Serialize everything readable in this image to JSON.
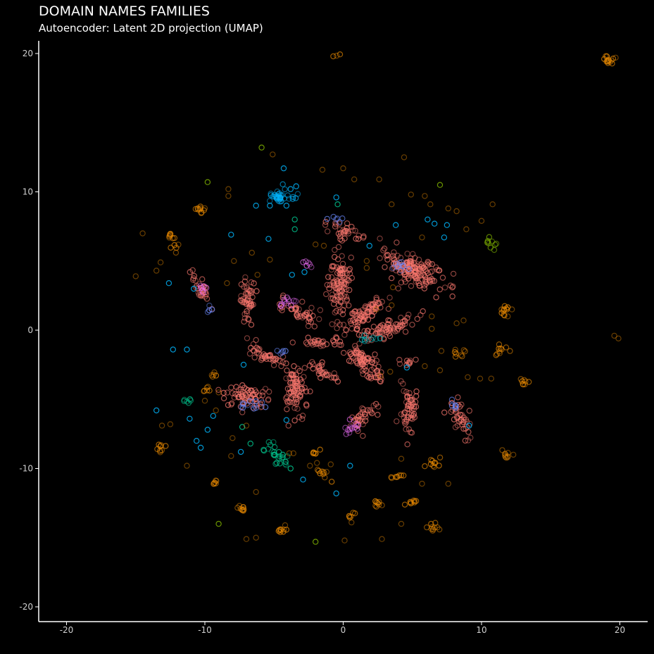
{
  "chart_data": {
    "type": "scatter",
    "title": "DOMAIN NAMES FAMILIES",
    "subtitle": "Autoencoder: Latent 2D projection (UMAP)",
    "xlabel": "",
    "ylabel": "",
    "xlim": [
      -22,
      22
    ],
    "ylim": [
      -22,
      22
    ],
    "xticks": [
      -20,
      -10,
      0,
      10,
      20
    ],
    "yticks": [
      20,
      10,
      0,
      -10,
      -20
    ],
    "grid": false,
    "legend": "none",
    "marker": "hollow-circle",
    "palette": {
      "salmon": "#f8766d",
      "orange": "#e58700",
      "cyan": "#00b0f6",
      "blue": "#6b8bff",
      "green": "#00c08b",
      "lime": "#7cae00",
      "pink": "#e76bf3",
      "teal": "#00bfc4"
    },
    "clusters": [
      {
        "cx": 5.0,
        "cy": 4.4,
        "sx": 1.2,
        "sy": 0.5,
        "angle": -25,
        "n": 160,
        "c": "salmon"
      },
      {
        "cx": -0.3,
        "cy": 3.3,
        "sx": 0.4,
        "sy": 1.2,
        "angle": 0,
        "n": 110,
        "c": "salmon"
      },
      {
        "cx": 1.4,
        "cy": 1.0,
        "sx": 1.0,
        "sy": 0.3,
        "angle": 40,
        "n": 80,
        "c": "salmon"
      },
      {
        "cx": 1.4,
        "cy": -2.2,
        "sx": 1.2,
        "sy": 0.3,
        "angle": -45,
        "n": 90,
        "c": "salmon"
      },
      {
        "cx": 3.0,
        "cy": 0.0,
        "sx": 1.2,
        "sy": 0.3,
        "angle": 20,
        "n": 70,
        "c": "salmon"
      },
      {
        "cx": -3.5,
        "cy": -4.2,
        "sx": 0.4,
        "sy": 0.8,
        "angle": 0,
        "n": 80,
        "c": "salmon"
      },
      {
        "cx": -7.0,
        "cy": -4.8,
        "sx": 0.9,
        "sy": 0.4,
        "angle": 0,
        "n": 70,
        "c": "salmon"
      },
      {
        "cx": -6.9,
        "cy": 2.0,
        "sx": 0.3,
        "sy": 0.8,
        "angle": 0,
        "n": 50,
        "c": "salmon"
      },
      {
        "cx": -5.2,
        "cy": -2.0,
        "sx": 1.0,
        "sy": 0.2,
        "angle": -25,
        "n": 45,
        "c": "salmon"
      },
      {
        "cx": -3.4,
        "cy": 1.4,
        "sx": 0.8,
        "sy": 0.3,
        "angle": -30,
        "n": 40,
        "c": "salmon"
      },
      {
        "cx": 4.8,
        "cy": -5.9,
        "sx": 0.3,
        "sy": 0.9,
        "angle": 0,
        "n": 55,
        "c": "salmon"
      },
      {
        "cx": 8.5,
        "cy": -6.3,
        "sx": 0.3,
        "sy": 0.8,
        "angle": 20,
        "n": 40,
        "c": "salmon"
      },
      {
        "cx": 1.4,
        "cy": -6.3,
        "sx": 0.8,
        "sy": 0.3,
        "angle": 50,
        "n": 35,
        "c": "salmon"
      },
      {
        "cx": -1.5,
        "cy": -3.0,
        "sx": 0.7,
        "sy": 0.2,
        "angle": -35,
        "n": 30,
        "c": "salmon"
      },
      {
        "cx": -10.2,
        "cy": 2.8,
        "sx": 0.7,
        "sy": 0.2,
        "angle": -60,
        "n": 30,
        "c": "salmon"
      },
      {
        "cx": -1.6,
        "cy": -0.9,
        "sx": 0.8,
        "sy": 0.15,
        "angle": 0,
        "n": 25,
        "c": "salmon"
      },
      {
        "cx": 0.2,
        "cy": 7.2,
        "sx": 0.6,
        "sy": 0.3,
        "angle": -30,
        "n": 30,
        "c": "salmon"
      },
      {
        "cx": 4.7,
        "cy": -2.3,
        "sx": 0.3,
        "sy": 0.1,
        "angle": 0,
        "n": 10,
        "c": "salmon"
      },
      {
        "cx": -4.7,
        "cy": 9.7,
        "sx": 0.25,
        "sy": 0.25,
        "angle": 0,
        "n": 30,
        "c": "cyan"
      },
      {
        "cx": -4.0,
        "cy": 9.6,
        "sx": 0.5,
        "sy": 0.2,
        "angle": 0,
        "n": 8,
        "c": "cyan"
      },
      {
        "cx": -4.6,
        "cy": -9.3,
        "sx": 0.3,
        "sy": 0.3,
        "angle": 0,
        "n": 20,
        "c": "green"
      },
      {
        "cx": -5.4,
        "cy": -8.4,
        "sx": 0.3,
        "sy": 0.2,
        "angle": 0,
        "n": 8,
        "c": "green"
      },
      {
        "cx": -11.3,
        "cy": -5.2,
        "sx": 0.2,
        "sy": 0.2,
        "angle": 0,
        "n": 6,
        "c": "green"
      },
      {
        "cx": 10.7,
        "cy": 6.2,
        "sx": 0.3,
        "sy": 0.2,
        "angle": -30,
        "n": 10,
        "c": "lime"
      },
      {
        "cx": -12.2,
        "cy": 6.4,
        "sx": 0.2,
        "sy": 0.3,
        "angle": 0,
        "n": 12,
        "c": "orange"
      },
      {
        "cx": -10.3,
        "cy": 8.7,
        "sx": 0.2,
        "sy": 0.15,
        "angle": 0,
        "n": 10,
        "c": "orange"
      },
      {
        "cx": 19.2,
        "cy": 19.6,
        "sx": 0.2,
        "sy": 0.2,
        "angle": 0,
        "n": 14,
        "c": "orange"
      },
      {
        "cx": 11.6,
        "cy": 1.4,
        "sx": 0.2,
        "sy": 0.2,
        "angle": 0,
        "n": 10,
        "c": "orange"
      },
      {
        "cx": 11.4,
        "cy": -1.5,
        "sx": 0.3,
        "sy": 0.2,
        "angle": 40,
        "n": 10,
        "c": "orange"
      },
      {
        "cx": 13.0,
        "cy": -3.9,
        "sx": 0.2,
        "sy": 0.15,
        "angle": 0,
        "n": 8,
        "c": "orange"
      },
      {
        "cx": 11.8,
        "cy": -9.1,
        "sx": 0.2,
        "sy": 0.15,
        "angle": 0,
        "n": 8,
        "c": "orange"
      },
      {
        "cx": 6.5,
        "cy": -9.6,
        "sx": 0.2,
        "sy": 0.2,
        "angle": 0,
        "n": 10,
        "c": "orange"
      },
      {
        "cx": 6.4,
        "cy": -14.2,
        "sx": 0.2,
        "sy": 0.2,
        "angle": 0,
        "n": 10,
        "c": "orange"
      },
      {
        "cx": 4.9,
        "cy": -12.4,
        "sx": 0.2,
        "sy": 0.15,
        "angle": 0,
        "n": 8,
        "c": "orange"
      },
      {
        "cx": 3.9,
        "cy": -10.6,
        "sx": 0.2,
        "sy": 0.1,
        "angle": 0,
        "n": 8,
        "c": "orange"
      },
      {
        "cx": 2.5,
        "cy": -12.6,
        "sx": 0.15,
        "sy": 0.2,
        "angle": 0,
        "n": 8,
        "c": "orange"
      },
      {
        "cx": 0.7,
        "cy": -13.5,
        "sx": 0.15,
        "sy": 0.15,
        "angle": 0,
        "n": 6,
        "c": "orange"
      },
      {
        "cx": -1.5,
        "cy": -10.3,
        "sx": 0.3,
        "sy": 0.15,
        "angle": -45,
        "n": 10,
        "c": "orange"
      },
      {
        "cx": -2.0,
        "cy": -8.9,
        "sx": 0.15,
        "sy": 0.15,
        "angle": 0,
        "n": 6,
        "c": "orange"
      },
      {
        "cx": -4.5,
        "cy": -14.5,
        "sx": 0.2,
        "sy": 0.15,
        "angle": 0,
        "n": 8,
        "c": "orange"
      },
      {
        "cx": -7.3,
        "cy": -12.9,
        "sx": 0.2,
        "sy": 0.15,
        "angle": 0,
        "n": 8,
        "c": "orange"
      },
      {
        "cx": -9.3,
        "cy": -11.0,
        "sx": 0.15,
        "sy": 0.15,
        "angle": 0,
        "n": 6,
        "c": "orange"
      },
      {
        "cx": -13.2,
        "cy": -8.5,
        "sx": 0.2,
        "sy": 0.2,
        "angle": 0,
        "n": 8,
        "c": "orange"
      },
      {
        "cx": -10.0,
        "cy": -4.3,
        "sx": 0.15,
        "sy": 0.15,
        "angle": 0,
        "n": 6,
        "c": "orange"
      },
      {
        "cx": -9.3,
        "cy": -3.2,
        "sx": 0.15,
        "sy": 0.15,
        "angle": 0,
        "n": 5,
        "c": "orange"
      },
      {
        "cx": 8.4,
        "cy": -1.7,
        "sx": 0.2,
        "sy": 0.15,
        "angle": 0,
        "n": 8,
        "c": "orange"
      },
      {
        "cx": -0.4,
        "cy": 19.9,
        "sx": 0.2,
        "sy": 0.1,
        "angle": 0,
        "n": 3,
        "c": "orange"
      },
      {
        "cx": 4.5,
        "cy": 4.6,
        "sx": 0.5,
        "sy": 0.2,
        "angle": -20,
        "n": 10,
        "c": "blue"
      },
      {
        "cx": -6.6,
        "cy": -5.5,
        "sx": 0.5,
        "sy": 0.2,
        "angle": 0,
        "n": 12,
        "c": "blue"
      },
      {
        "cx": -3.7,
        "cy": 2.1,
        "sx": 0.5,
        "sy": 0.2,
        "angle": 20,
        "n": 12,
        "c": "pink"
      },
      {
        "cx": 0.6,
        "cy": -7.2,
        "sx": 0.5,
        "sy": 0.2,
        "angle": 50,
        "n": 12,
        "c": "pink"
      },
      {
        "cx": -0.6,
        "cy": 8.1,
        "sx": 0.3,
        "sy": 0.15,
        "angle": 0,
        "n": 6,
        "c": "blue"
      },
      {
        "cx": 8.0,
        "cy": -5.4,
        "sx": 0.3,
        "sy": 0.15,
        "angle": 0,
        "n": 6,
        "c": "blue"
      },
      {
        "cx": -9.6,
        "cy": 1.6,
        "sx": 0.2,
        "sy": 0.15,
        "angle": 0,
        "n": 5,
        "c": "blue"
      },
      {
        "cx": -4.3,
        "cy": -1.6,
        "sx": 0.2,
        "sy": 0.15,
        "angle": 0,
        "n": 5,
        "c": "blue"
      },
      {
        "cx": 2.0,
        "cy": -0.6,
        "sx": 0.4,
        "sy": 0.15,
        "angle": 0,
        "n": 8,
        "c": "teal"
      },
      {
        "cx": -2.5,
        "cy": 4.6,
        "sx": 0.15,
        "sy": 0.3,
        "angle": 0,
        "n": 6,
        "c": "pink"
      },
      {
        "cx": -10.2,
        "cy": 3.1,
        "sx": 0.3,
        "sy": 0.15,
        "angle": -50,
        "n": 6,
        "c": "pink"
      }
    ],
    "points": [
      {
        "x": -4.3,
        "y": 11.7,
        "c": "cyan"
      },
      {
        "x": -3.8,
        "y": 10.2,
        "c": "cyan"
      },
      {
        "x": -3.4,
        "y": 10.4,
        "c": "cyan"
      },
      {
        "x": -6.3,
        "y": 9.0,
        "c": "cyan"
      },
      {
        "x": -5.3,
        "y": 9.0,
        "c": "cyan"
      },
      {
        "x": -4.1,
        "y": 9.0,
        "c": "cyan"
      },
      {
        "x": -8.1,
        "y": 6.9,
        "c": "cyan"
      },
      {
        "x": -5.4,
        "y": 6.6,
        "c": "cyan"
      },
      {
        "x": -12.6,
        "y": 3.4,
        "c": "cyan"
      },
      {
        "x": -12.3,
        "y": -1.4,
        "c": "cyan"
      },
      {
        "x": -11.3,
        "y": -1.4,
        "c": "cyan"
      },
      {
        "x": -10.8,
        "y": 3.0,
        "c": "cyan"
      },
      {
        "x": -13.5,
        "y": -5.8,
        "c": "cyan"
      },
      {
        "x": -9.4,
        "y": -6.2,
        "c": "cyan"
      },
      {
        "x": -11.1,
        "y": -6.4,
        "c": "cyan"
      },
      {
        "x": -9.8,
        "y": -7.2,
        "c": "cyan"
      },
      {
        "x": -10.6,
        "y": -8.0,
        "c": "cyan"
      },
      {
        "x": -10.3,
        "y": -8.5,
        "c": "cyan"
      },
      {
        "x": -7.4,
        "y": -8.8,
        "c": "cyan"
      },
      {
        "x": -4.1,
        "y": -6.5,
        "c": "cyan"
      },
      {
        "x": -2.9,
        "y": -10.8,
        "c": "cyan"
      },
      {
        "x": 0.5,
        "y": -9.8,
        "c": "cyan"
      },
      {
        "x": -0.5,
        "y": -11.8,
        "c": "cyan"
      },
      {
        "x": -7.2,
        "y": -2.5,
        "c": "cyan"
      },
      {
        "x": 3.8,
        "y": 7.6,
        "c": "cyan"
      },
      {
        "x": 6.1,
        "y": 8.0,
        "c": "cyan"
      },
      {
        "x": 6.6,
        "y": 7.7,
        "c": "cyan"
      },
      {
        "x": 7.5,
        "y": 7.6,
        "c": "cyan"
      },
      {
        "x": 7.3,
        "y": 6.7,
        "c": "cyan"
      },
      {
        "x": -0.5,
        "y": 9.6,
        "c": "cyan"
      },
      {
        "x": 1.9,
        "y": 6.1,
        "c": "cyan"
      },
      {
        "x": -3.7,
        "y": 4.0,
        "c": "cyan"
      },
      {
        "x": -2.8,
        "y": 4.2,
        "c": "cyan"
      },
      {
        "x": 9.1,
        "y": -6.9,
        "c": "cyan"
      },
      {
        "x": 4.6,
        "y": -2.7,
        "c": "cyan"
      },
      {
        "x": -3.5,
        "y": 7.3,
        "c": "green"
      },
      {
        "x": -3.5,
        "y": 8.0,
        "c": "green"
      },
      {
        "x": -0.4,
        "y": 9.1,
        "c": "green"
      },
      {
        "x": -7.3,
        "y": -7.0,
        "c": "green"
      },
      {
        "x": -6.7,
        "y": -8.2,
        "c": "green"
      },
      {
        "x": -3.8,
        "y": -10.0,
        "c": "green"
      },
      {
        "x": -9.0,
        "y": -14.0,
        "c": "lime"
      },
      {
        "x": -2.0,
        "y": -15.3,
        "c": "lime"
      },
      {
        "x": 7.0,
        "y": 10.5,
        "c": "lime"
      },
      {
        "x": -5.9,
        "y": 13.2,
        "c": "lime"
      },
      {
        "x": -9.8,
        "y": 10.7,
        "c": "lime"
      },
      {
        "x": 10.8,
        "y": 9.1,
        "c": "orange"
      },
      {
        "x": 6.3,
        "y": 9.1,
        "c": "orange"
      },
      {
        "x": 7.6,
        "y": 8.8,
        "c": "orange"
      },
      {
        "x": 8.2,
        "y": 8.6,
        "c": "orange"
      },
      {
        "x": 8.9,
        "y": 7.3,
        "c": "orange"
      },
      {
        "x": 5.9,
        "y": 9.7,
        "c": "orange"
      },
      {
        "x": 4.9,
        "y": 9.8,
        "c": "orange"
      },
      {
        "x": 3.5,
        "y": 9.1,
        "c": "orange"
      },
      {
        "x": 4.4,
        "y": 12.5,
        "c": "orange"
      },
      {
        "x": 2.6,
        "y": 10.9,
        "c": "orange"
      },
      {
        "x": 0.8,
        "y": 10.9,
        "c": "orange"
      },
      {
        "x": 0.0,
        "y": 11.7,
        "c": "orange"
      },
      {
        "x": -1.5,
        "y": 11.6,
        "c": "orange"
      },
      {
        "x": -5.1,
        "y": 12.7,
        "c": "orange"
      },
      {
        "x": -8.3,
        "y": 10.2,
        "c": "orange"
      },
      {
        "x": -8.3,
        "y": 9.7,
        "c": "orange"
      },
      {
        "x": -14.5,
        "y": 7.0,
        "c": "orange"
      },
      {
        "x": -13.2,
        "y": 4.9,
        "c": "orange"
      },
      {
        "x": -13.5,
        "y": 4.3,
        "c": "orange"
      },
      {
        "x": -15.0,
        "y": 3.9,
        "c": "orange"
      },
      {
        "x": -8.4,
        "y": 3.4,
        "c": "orange"
      },
      {
        "x": -6.2,
        "y": 4.0,
        "c": "orange"
      },
      {
        "x": -5.3,
        "y": 5.1,
        "c": "orange"
      },
      {
        "x": -6.6,
        "y": 5.6,
        "c": "orange"
      },
      {
        "x": -7.9,
        "y": 5.0,
        "c": "orange"
      },
      {
        "x": -2.0,
        "y": 6.2,
        "c": "orange"
      },
      {
        "x": -1.4,
        "y": 6.1,
        "c": "orange"
      },
      {
        "x": 1.7,
        "y": 5.0,
        "c": "orange"
      },
      {
        "x": 5.7,
        "y": 6.7,
        "c": "orange"
      },
      {
        "x": 10.0,
        "y": 7.9,
        "c": "orange"
      },
      {
        "x": 6.4,
        "y": 1.0,
        "c": "orange"
      },
      {
        "x": 6.4,
        "y": 0.1,
        "c": "orange"
      },
      {
        "x": 8.2,
        "y": 0.5,
        "c": "orange"
      },
      {
        "x": 8.7,
        "y": 0.7,
        "c": "orange"
      },
      {
        "x": 7.1,
        "y": -1.5,
        "c": "orange"
      },
      {
        "x": 5.9,
        "y": -2.6,
        "c": "orange"
      },
      {
        "x": 7.0,
        "y": -2.9,
        "c": "orange"
      },
      {
        "x": 9.9,
        "y": -3.5,
        "c": "orange"
      },
      {
        "x": 10.7,
        "y": -3.5,
        "c": "orange"
      },
      {
        "x": 12.2,
        "y": 1.5,
        "c": "orange"
      },
      {
        "x": 11.9,
        "y": 1.0,
        "c": "orange"
      },
      {
        "x": 12.3,
        "y": -9.0,
        "c": "orange"
      },
      {
        "x": 5.7,
        "y": -11.1,
        "c": "orange"
      },
      {
        "x": 7.6,
        "y": -11.1,
        "c": "orange"
      },
      {
        "x": 4.2,
        "y": -9.3,
        "c": "orange"
      },
      {
        "x": 2.8,
        "y": -15.1,
        "c": "orange"
      },
      {
        "x": 4.2,
        "y": -14.0,
        "c": "orange"
      },
      {
        "x": 0.1,
        "y": -15.2,
        "c": "orange"
      },
      {
        "x": 0.6,
        "y": -13.9,
        "c": "orange"
      },
      {
        "x": -1.9,
        "y": -9.6,
        "c": "orange"
      },
      {
        "x": -2.4,
        "y": -9.8,
        "c": "orange"
      },
      {
        "x": -0.9,
        "y": -9.7,
        "c": "orange"
      },
      {
        "x": -3.9,
        "y": -8.9,
        "c": "orange"
      },
      {
        "x": -6.3,
        "y": -11.7,
        "c": "orange"
      },
      {
        "x": -7.5,
        "y": -12.7,
        "c": "orange"
      },
      {
        "x": -7.0,
        "y": -15.1,
        "c": "orange"
      },
      {
        "x": -6.3,
        "y": -15.0,
        "c": "orange"
      },
      {
        "x": -4.2,
        "y": -14.1,
        "c": "orange"
      },
      {
        "x": -11.3,
        "y": -9.8,
        "c": "orange"
      },
      {
        "x": -13.1,
        "y": -6.9,
        "c": "orange"
      },
      {
        "x": -12.5,
        "y": -6.8,
        "c": "orange"
      },
      {
        "x": -8.1,
        "y": -9.1,
        "c": "orange"
      },
      {
        "x": -8.0,
        "y": -7.8,
        "c": "orange"
      },
      {
        "x": -7.0,
        "y": -6.9,
        "c": "orange"
      },
      {
        "x": -10.0,
        "y": -5.1,
        "c": "orange"
      },
      {
        "x": -9.2,
        "y": -5.8,
        "c": "orange"
      },
      {
        "x": -9.0,
        "y": -4.5,
        "c": "orange"
      },
      {
        "x": -3.6,
        "y": -8.9,
        "c": "orange"
      },
      {
        "x": 2.7,
        "y": -3.3,
        "c": "orange"
      },
      {
        "x": 3.4,
        "y": -3.0,
        "c": "orange"
      },
      {
        "x": 3.5,
        "y": 1.8,
        "c": "orange"
      },
      {
        "x": 3.6,
        "y": 3.1,
        "c": "orange"
      },
      {
        "x": 1.7,
        "y": 4.5,
        "c": "orange"
      },
      {
        "x": 2.4,
        "y": 1.5,
        "c": "orange"
      },
      {
        "x": 19.7,
        "y": 19.7,
        "c": "orange"
      },
      {
        "x": 19.6,
        "y": -0.4,
        "c": "orange"
      },
      {
        "x": 19.9,
        "y": -0.6,
        "c": "orange"
      },
      {
        "x": 9.0,
        "y": -3.4,
        "c": "orange"
      },
      {
        "x": 11.6,
        "y": 1.5,
        "c": "orange"
      }
    ]
  }
}
